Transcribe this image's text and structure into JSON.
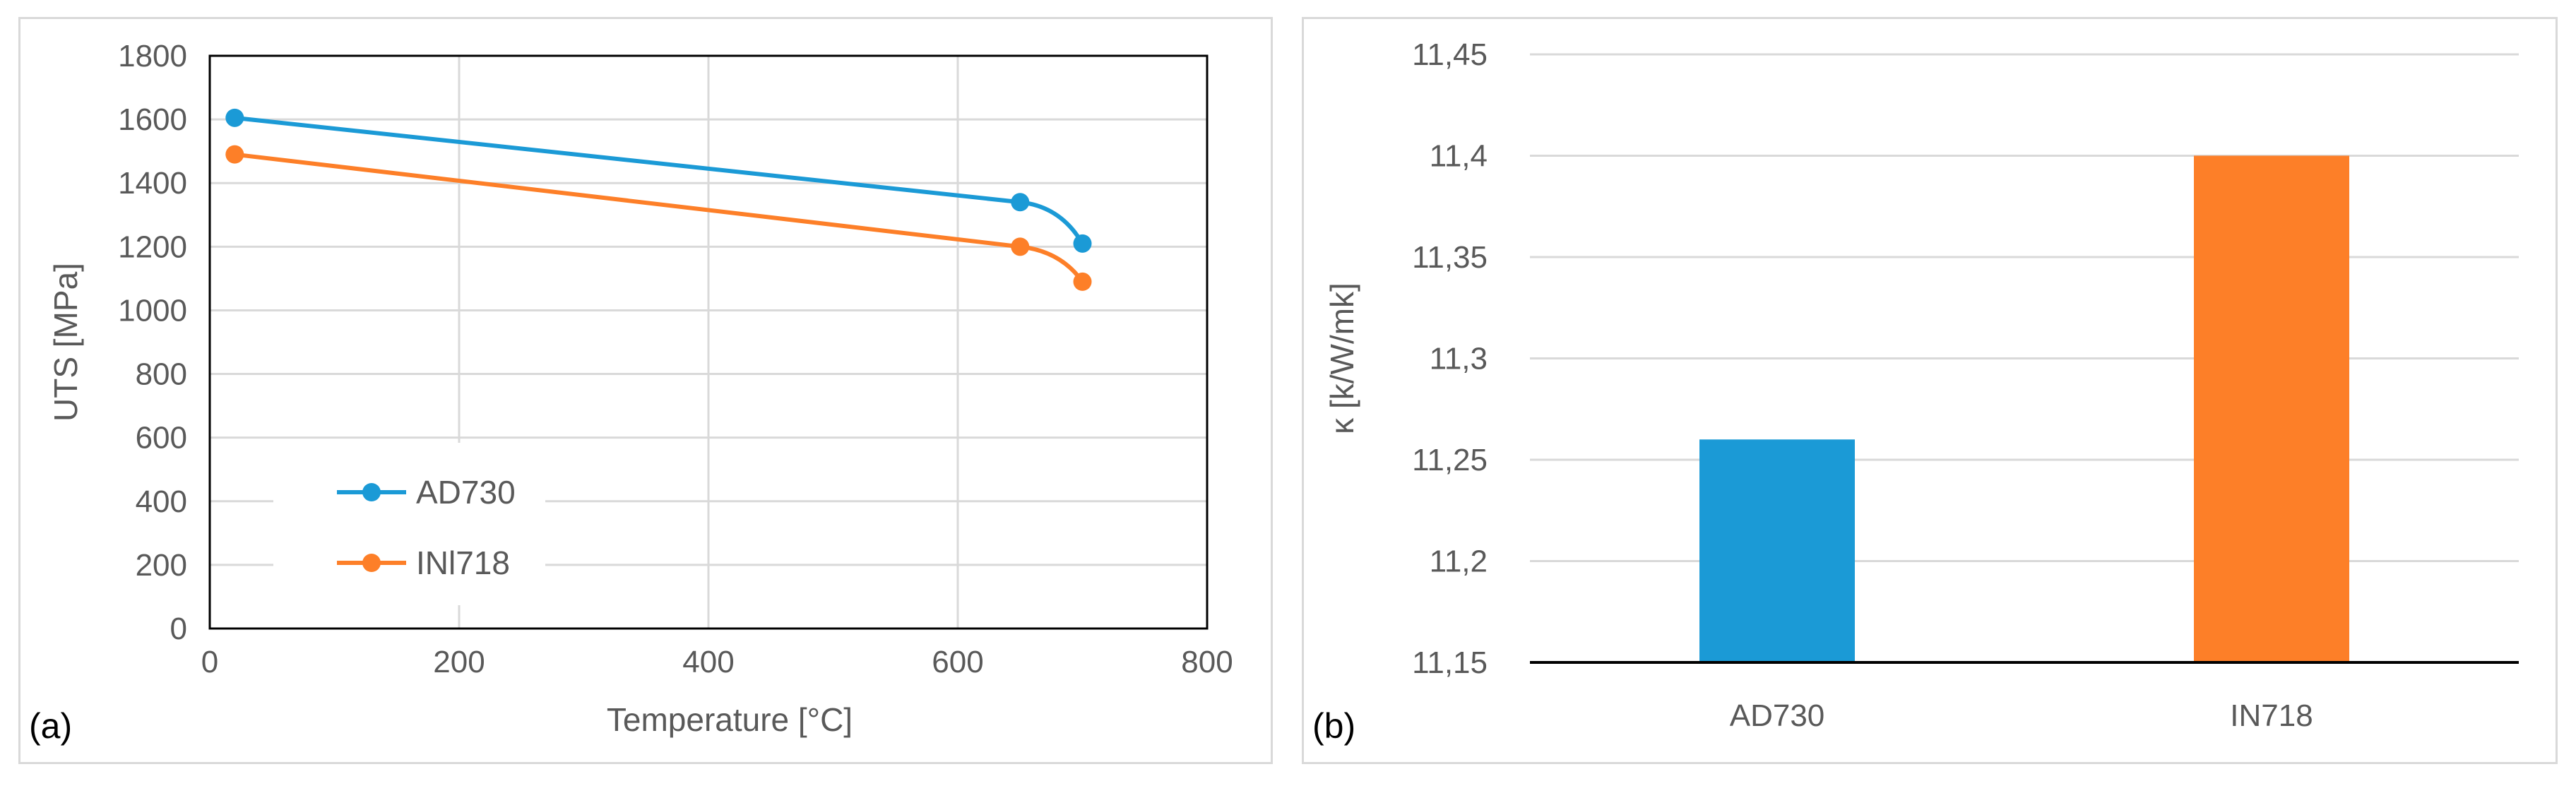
{
  "chart_data": [
    {
      "type": "line",
      "panel_label": "(a)",
      "xlabel": "Temperature [°C]",
      "ylabel": "UTS [MPa]",
      "xlim": [
        0,
        800
      ],
      "ylim": [
        0,
        1800
      ],
      "x_ticks": [
        0,
        200,
        400,
        600,
        800
      ],
      "y_ticks": [
        0,
        200,
        400,
        600,
        800,
        1000,
        1200,
        1400,
        1600,
        1800
      ],
      "grid": true,
      "legend_position": "bottom-left",
      "series": [
        {
          "name": "AD730",
          "color": "#1b9ad6",
          "points": [
            {
              "x": 20,
              "y": 1605
            },
            {
              "x": 650,
              "y": 1340
            },
            {
              "x": 700,
              "y": 1210
            }
          ]
        },
        {
          "name": "INl718",
          "color": "#fd7f28",
          "points": [
            {
              "x": 20,
              "y": 1490
            },
            {
              "x": 650,
              "y": 1200
            },
            {
              "x": 700,
              "y": 1090
            }
          ]
        }
      ]
    },
    {
      "type": "bar",
      "panel_label": "(b)",
      "xlabel": "",
      "ylabel": "κ [k/W/mk]",
      "categories": [
        "AD730",
        "IN718"
      ],
      "values": [
        11.26,
        11.4
      ],
      "colors": [
        "#1b9ad6",
        "#fd7f28"
      ],
      "ylim": [
        11.15,
        11.45
      ],
      "y_ticks": [
        "11,15",
        "11,2",
        "11,25",
        "11,3",
        "11,35",
        "11,4",
        "11,45"
      ],
      "grid": true
    }
  ]
}
